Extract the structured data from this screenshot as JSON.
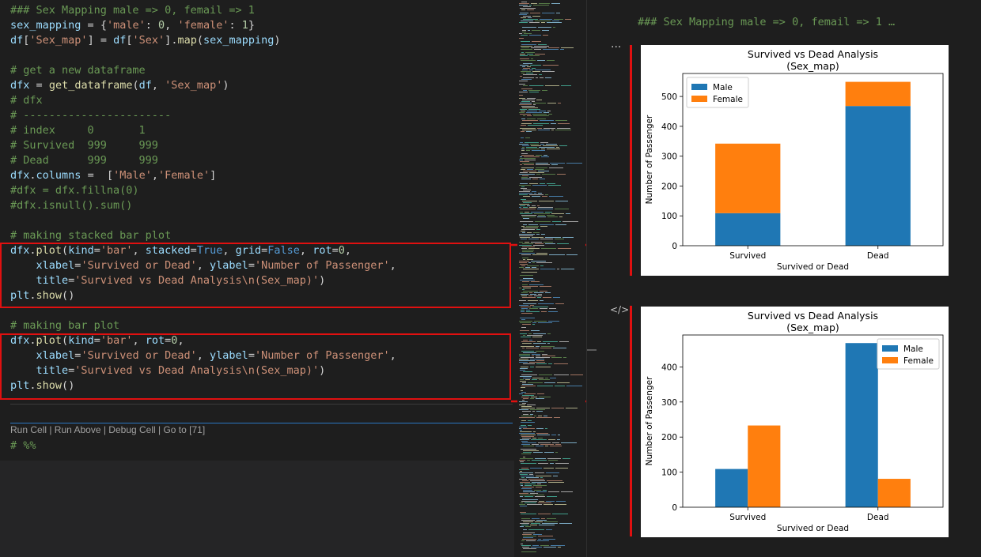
{
  "code": {
    "lines": [
      "### Sex Mapping male => 0, femail => 1",
      "sex_mapping = {'male': 0, 'female': 1}",
      "df['Sex_map'] = df['Sex'].map(sex_mapping)",
      "",
      "# get a new dataframe",
      "dfx = get_dataframe(df, 'Sex_map')",
      "# dfx",
      "# -----------------------",
      "# index     0       1",
      "# Survived  999     999",
      "# Dead      999     999",
      "dfx.columns =  ['Male','Female']",
      "#dfx = dfx.fillna(0)",
      "#dfx.isnull().sum()",
      "",
      "# making stacked bar plot",
      "dfx.plot(kind='bar', stacked=True, grid=False, rot=0,",
      "    xlabel='Survived or Dead', ylabel='Number of Passenger',",
      "    title='Survived vs Dead Analysis\\n(Sex_map)')",
      "plt.show()",
      "",
      "# making bar plot",
      "dfx.plot(kind='bar', rot=0,",
      "    xlabel='Survived or Dead', ylabel='Number of Passenger',",
      "    title='Survived vs Dead Analysis\\n(Sex_map)')",
      "plt.show()"
    ],
    "codelens": "Run Cell | Run Above | Debug Cell | Go to [71]",
    "after_codelens": "# %%"
  },
  "output": {
    "header": "### Sex Mapping male => 0, femail => 1 …",
    "more_icon": "···",
    "code_icon": "</>"
  },
  "colors": {
    "male": "#1f77b4",
    "female": "#ff7f0e",
    "highlight": "#e01010"
  },
  "chart_data": [
    {
      "type": "bar",
      "stacked": true,
      "title": "Survived vs Dead Analysis",
      "subtitle": "(Sex_map)",
      "xlabel": "Survived or Dead",
      "ylabel": "Number of Passenger",
      "categories": [
        "Survived",
        "Dead"
      ],
      "series": [
        {
          "name": "Male",
          "values": [
            109,
            468
          ]
        },
        {
          "name": "Female",
          "values": [
            233,
            81
          ]
        }
      ],
      "yticks": [
        "0",
        "100",
        "200",
        "300",
        "400",
        "500"
      ],
      "ylim": [
        0,
        577
      ],
      "legend": "top-left",
      "grid": false
    },
    {
      "type": "bar",
      "stacked": false,
      "title": "Survived vs Dead Analysis",
      "subtitle": "(Sex_map)",
      "xlabel": "Survived or Dead",
      "ylabel": "Number of Passenger",
      "categories": [
        "Survived",
        "Dead"
      ],
      "series": [
        {
          "name": "Male",
          "values": [
            109,
            468
          ]
        },
        {
          "name": "Female",
          "values": [
            233,
            81
          ]
        }
      ],
      "yticks": [
        "0",
        "100",
        "200",
        "300",
        "400"
      ],
      "ylim": [
        0,
        491
      ],
      "legend": "top-right",
      "grid": false
    }
  ]
}
